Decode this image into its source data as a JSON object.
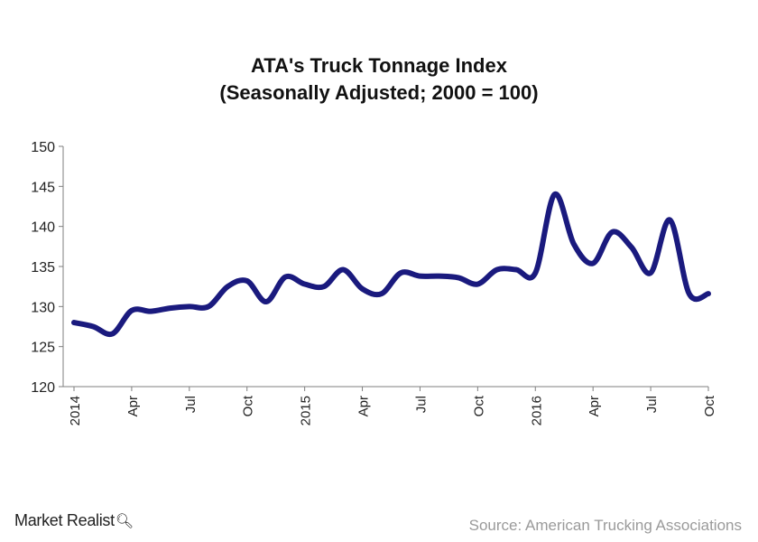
{
  "chart_data": {
    "type": "line",
    "title": "ATA's Truck Tonnage Index",
    "subtitle": "(Seasonally Adjusted; 2000 = 100)",
    "xlabel": "",
    "ylabel": "",
    "ylim": [
      120,
      150
    ],
    "yticks": [
      120,
      125,
      130,
      135,
      140,
      145,
      150
    ],
    "grid": false,
    "x_ticks": [
      {
        "label": "2014",
        "index": 0
      },
      {
        "label": "Apr",
        "index": 3
      },
      {
        "label": "Jul",
        "index": 6
      },
      {
        "label": "Oct",
        "index": 9
      },
      {
        "label": "2015",
        "index": 12
      },
      {
        "label": "Apr",
        "index": 15
      },
      {
        "label": "Jul",
        "index": 18
      },
      {
        "label": "Oct",
        "index": 21
      },
      {
        "label": "2016",
        "index": 24
      },
      {
        "label": "Apr",
        "index": 27
      },
      {
        "label": "Jul",
        "index": 30
      },
      {
        "label": "Oct",
        "index": 33
      }
    ],
    "x": [
      "2014-01",
      "2014-02",
      "2014-03",
      "2014-04",
      "2014-05",
      "2014-06",
      "2014-07",
      "2014-08",
      "2014-09",
      "2014-10",
      "2014-11",
      "2014-12",
      "2015-01",
      "2015-02",
      "2015-03",
      "2015-04",
      "2015-05",
      "2015-06",
      "2015-07",
      "2015-08",
      "2015-09",
      "2015-10",
      "2015-11",
      "2015-12",
      "2016-01",
      "2016-02",
      "2016-03",
      "2016-04",
      "2016-05",
      "2016-06",
      "2016-07",
      "2016-08",
      "2016-09",
      "2016-10"
    ],
    "series": [
      {
        "name": "",
        "color": "#1a1a7e",
        "values": [
          128.0,
          127.5,
          126.6,
          129.5,
          129.4,
          129.8,
          130.0,
          130.0,
          132.5,
          133.2,
          130.6,
          133.7,
          132.8,
          132.5,
          134.6,
          132.2,
          131.6,
          134.2,
          133.8,
          133.8,
          133.6,
          132.8,
          134.6,
          134.6,
          134.2,
          144.0,
          137.8,
          135.4,
          139.3,
          137.4,
          134.2,
          140.8,
          131.6,
          131.6
        ]
      }
    ]
  },
  "footer": {
    "brand": "Market Realist",
    "brand_icon": "magnifier-icon",
    "source": "Source: American Trucking Associations"
  }
}
